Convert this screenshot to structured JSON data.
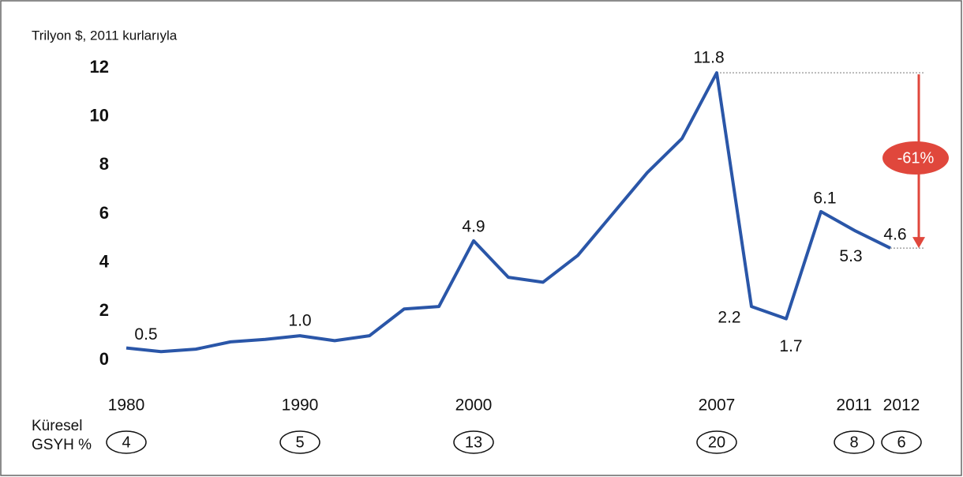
{
  "chart_data": {
    "type": "line",
    "y_label": "Trilyon $, 2011 kurlarıyla",
    "categories": [
      "1980",
      null,
      null,
      null,
      null,
      "1990",
      null,
      null,
      null,
      null,
      "2000",
      null,
      null,
      null,
      null,
      null,
      null,
      "2007",
      null,
      null,
      null,
      "2011",
      "2012"
    ],
    "values": [
      0.5,
      0.35,
      0.45,
      0.75,
      0.85,
      1.0,
      0.8,
      1.0,
      2.1,
      2.2,
      4.9,
      3.4,
      3.2,
      4.3,
      6.0,
      7.7,
      9.1,
      11.8,
      2.2,
      1.7,
      6.1,
      5.3,
      4.6
    ],
    "value_labels": [
      "0.5",
      null,
      null,
      null,
      null,
      "1.0",
      null,
      null,
      null,
      null,
      "4.9",
      null,
      null,
      null,
      null,
      null,
      null,
      "11.8",
      "2.2",
      "1.7",
      "6.1",
      "5.3",
      "4.6"
    ],
    "color": "#2a56a8",
    "ylim": [
      0,
      12
    ],
    "yticks": [
      0,
      2,
      4,
      6,
      8,
      10,
      12
    ],
    "gdp_share": {
      "label": "Küresel GSYH %",
      "values": [
        4,
        null,
        null,
        null,
        null,
        5,
        null,
        null,
        null,
        null,
        13,
        null,
        null,
        null,
        null,
        null,
        null,
        20,
        null,
        null,
        null,
        8,
        6
      ]
    },
    "annotation": "-61%"
  }
}
